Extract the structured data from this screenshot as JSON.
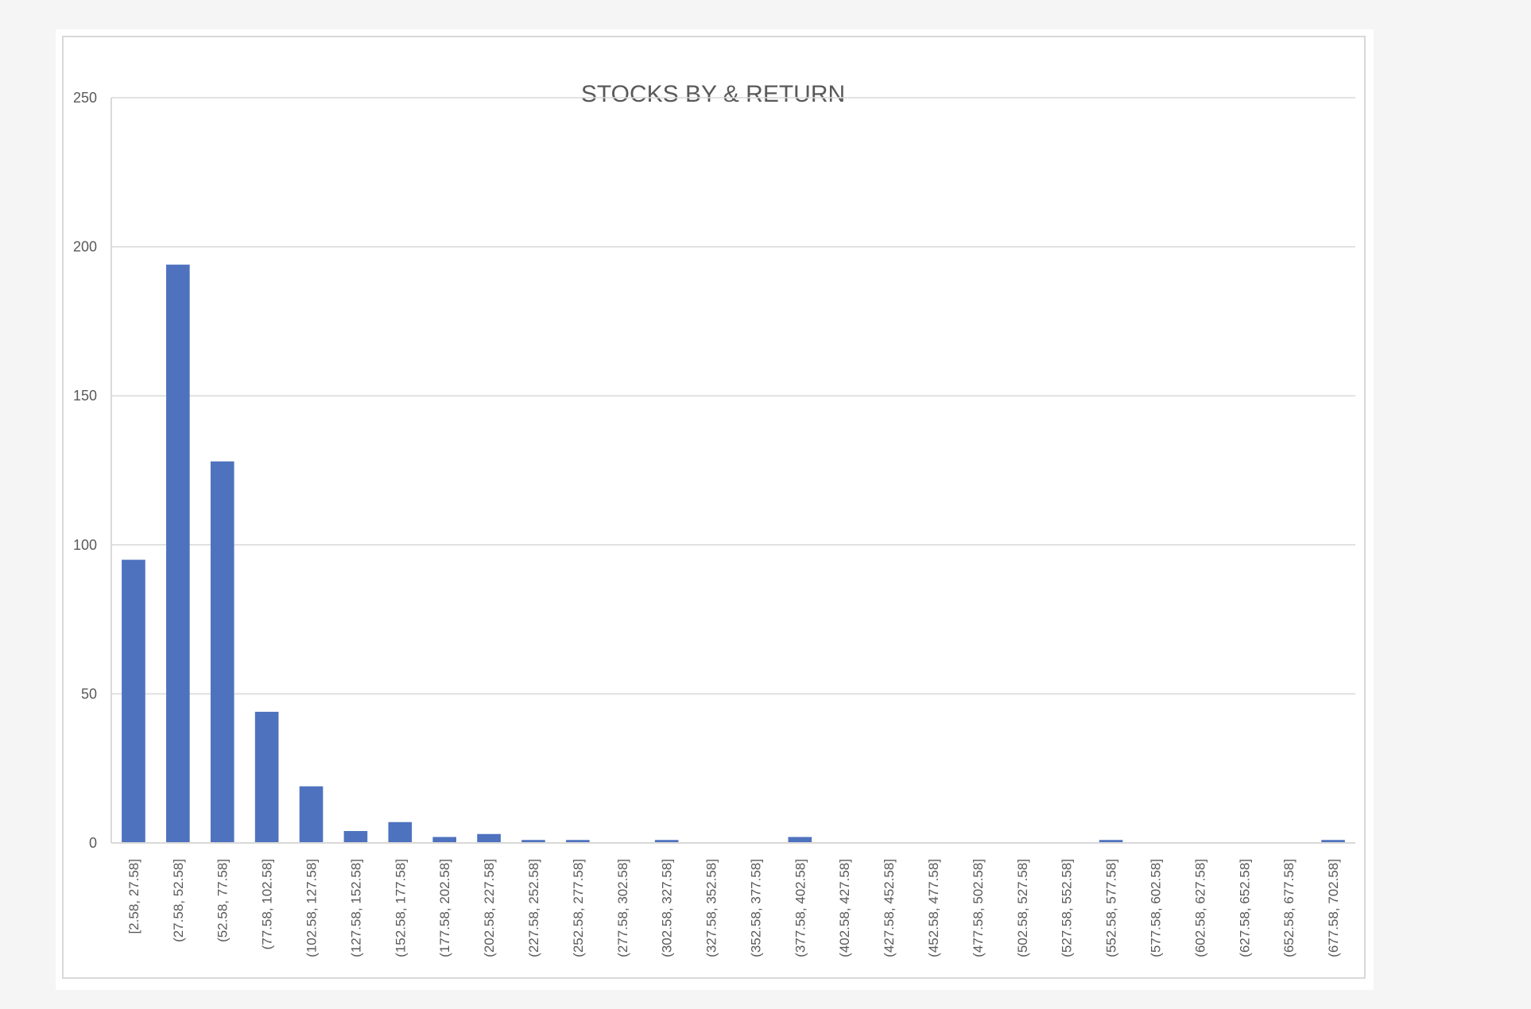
{
  "chart_data": {
    "type": "bar",
    "title": "STOCKS BY & RETURN",
    "xlabel": "",
    "ylabel": "",
    "ylim": [
      0,
      250
    ],
    "yticks": [
      0,
      50,
      100,
      150,
      200,
      250
    ],
    "grid": true,
    "legend": "none",
    "bar_color": "#4e72be",
    "categories": [
      "[2.58, 27.58]",
      "(27.58, 52.58]",
      "(52.58, 77.58]",
      "(77.58, 102.58]",
      "(102.58, 127.58]",
      "(127.58, 152.58]",
      "(152.58, 177.58]",
      "(177.58, 202.58]",
      "(202.58, 227.58]",
      "(227.58, 252.58]",
      "(252.58, 277.58]",
      "(277.58, 302.58]",
      "(302.58, 327.58]",
      "(327.58, 352.58]",
      "(352.58, 377.58]",
      "(377.58, 402.58]",
      "(402.58, 427.58]",
      "(427.58, 452.58]",
      "(452.58, 477.58]",
      "(477.58, 502.58]",
      "(502.58, 527.58]",
      "(527.58, 552.58]",
      "(552.58, 577.58]",
      "(577.58, 602.58]",
      "(602.58, 627.58]",
      "(627.58, 652.58]",
      "(652.58, 677.58]",
      "(677.58, 702.58]"
    ],
    "values": [
      95,
      194,
      128,
      44,
      19,
      4,
      7,
      2,
      3,
      1,
      1,
      0,
      1,
      0,
      0,
      2,
      0,
      0,
      0,
      0,
      0,
      0,
      1,
      0,
      0,
      0,
      0,
      1
    ]
  }
}
